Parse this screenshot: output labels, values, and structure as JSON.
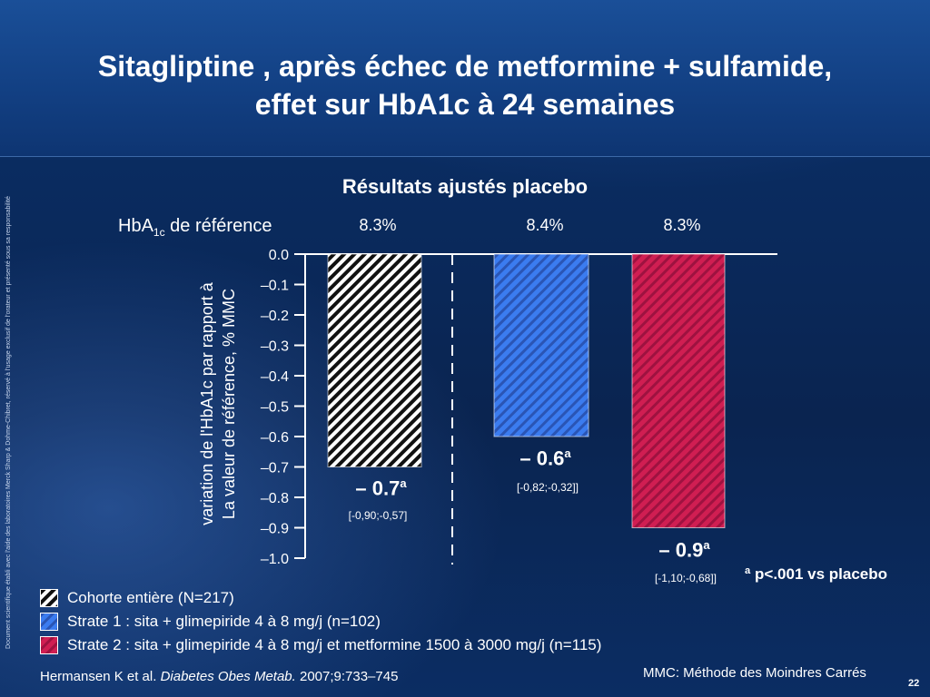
{
  "title_line1": "Sitagliptine , après échec de metformine + sulfamide,",
  "title_line2": "effet sur HbA1c à 24 semaines",
  "side_note": "Document scientifique établi avec l'aide des laboratoires Merck Sharp & Dohme-Chibret, réservé à l'usage exclusif de l'orateur et présenté sous sa responsabilité",
  "baseline": {
    "label_main": "HbA",
    "label_sub": "1c",
    "label_rest": " de référence",
    "values": [
      "8.3%",
      "8.4%",
      "8.3%"
    ]
  },
  "footnote_p": "ª p<.001 vs placebo",
  "legend": [
    {
      "label": "Cohorte entière  (N=217)"
    },
    {
      "label": "Strate 1 : sita + glimepiride 4 à 8 mg/j (n=102)"
    },
    {
      "label": "Strate 2 : sita + glimepiride 4 à 8 mg/j et metformine 1500 à 3000 mg/j (n=115)"
    }
  ],
  "citation": {
    "authors": "Hermansen K et al. ",
    "journal": "Diabetes Obes Metab.",
    "ref": " 2007;9:733–745"
  },
  "mmc_note": "MMC: Méthode des Moindres Carrés",
  "page_number": "22",
  "chart_data": {
    "type": "bar",
    "title": "Résultats ajustés placebo",
    "ylabel": "variation de l'HbA1c par rapport à La valeur de référence, % MMC",
    "ylabel_line1": "variation de l'HbA1c par rapport à",
    "ylabel_line2": "La valeur de référence, % MMC",
    "ylim": [
      -1.0,
      0.0
    ],
    "yticks": [
      0.0,
      -0.1,
      -0.2,
      -0.3,
      -0.4,
      -0.5,
      -0.6,
      -0.7,
      -0.8,
      -0.9,
      -1.0
    ],
    "ytick_labels": [
      "0.0",
      "–0.1",
      "–0.2",
      "–0.3",
      "–0.4",
      "–0.5",
      "–0.6",
      "–0.7",
      "–0.8",
      "–0.9",
      "–1.0"
    ],
    "series": [
      {
        "name": "Cohorte entière  (N=217)",
        "value": -0.7,
        "label": "– 0.7",
        "ci": "[-0,90;-0,57]",
        "pattern": "bw",
        "color": "#ffffff"
      },
      {
        "name": "Strate 1 : sita + glimepiride 4 à 8 mg/j (n=102)",
        "value": -0.6,
        "label": "– 0.6",
        "ci": "[-0,82;-0,32]]",
        "pattern": "blue",
        "color": "#3a6fe0"
      },
      {
        "name": "Strate 2 : sita + glimepiride 4 à 8 mg/j et metformine 1500 à 3000 mg/j (n=115)",
        "value": -0.9,
        "label": "– 0.9",
        "ci": "[-1,10;-0,68]]",
        "pattern": "red",
        "color": "#c8184a"
      }
    ],
    "sig_marker": "a",
    "grid": false
  }
}
